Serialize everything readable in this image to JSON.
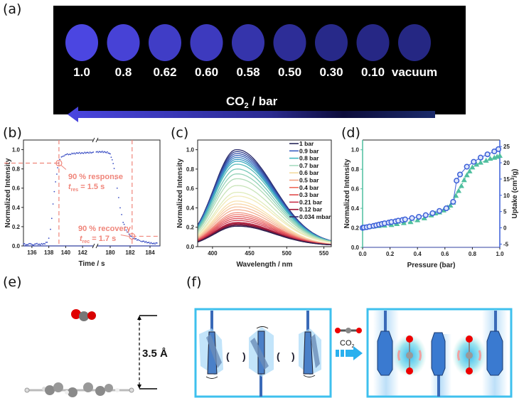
{
  "panel_labels": {
    "a": "(a)",
    "b": "(b)",
    "c": "(c)",
    "d": "(d)",
    "e": "(e)",
    "f": "(f)"
  },
  "panel_a": {
    "samples": [
      {
        "label": "1.0",
        "brightness": 1.0
      },
      {
        "label": "0.8",
        "brightness": 0.92
      },
      {
        "label": "0.62",
        "brightness": 0.8
      },
      {
        "label": "0.60",
        "brightness": 0.74
      },
      {
        "label": "0.58",
        "brightness": 0.6
      },
      {
        "label": "0.50",
        "brightness": 0.45
      },
      {
        "label": "0.30",
        "brightness": 0.35
      },
      {
        "label": "0.10",
        "brightness": 0.32
      },
      {
        "label": "vacuum",
        "brightness": 0.3
      }
    ],
    "arrow_label": "CO",
    "arrow_label_sub": "2",
    "arrow_label_suffix": " / bar",
    "colors": {
      "background": "#000000",
      "glow": "#4a47e0"
    }
  },
  "chart_data": [
    {
      "id": "b",
      "type": "scatter",
      "title": "",
      "xlabel": "Time / s",
      "ylabel": "Normalized Intensity",
      "x_ticks_left": [
        "136",
        "138",
        "140",
        "142"
      ],
      "x_ticks_right": [
        "180",
        "182",
        "184"
      ],
      "x_range_left": [
        135,
        143.5
      ],
      "x_range_right": [
        178.5,
        185
      ],
      "y_ticks": [
        "0.0",
        "0.2",
        "0.4",
        "0.6",
        "0.8",
        "1.0"
      ],
      "ylim": [
        0,
        1.1
      ],
      "series_color": "#3b4fc4",
      "response_segment": [
        [
          135.0,
          0.02
        ],
        [
          135.4,
          0.015
        ],
        [
          135.8,
          0.02
        ],
        [
          136.2,
          0.015
        ],
        [
          136.6,
          0.02
        ],
        [
          137.0,
          0.018
        ],
        [
          137.4,
          0.02
        ],
        [
          137.8,
          0.04
        ],
        [
          138.0,
          0.08
        ],
        [
          138.2,
          0.17
        ],
        [
          138.35,
          0.29
        ],
        [
          138.5,
          0.43
        ],
        [
          138.65,
          0.57
        ],
        [
          138.8,
          0.66
        ],
        [
          138.95,
          0.75
        ],
        [
          139.05,
          0.81
        ],
        [
          139.15,
          0.86
        ],
        [
          139.3,
          0.9
        ],
        [
          139.5,
          0.92
        ],
        [
          139.8,
          0.94
        ],
        [
          140.2,
          0.95
        ],
        [
          140.6,
          0.955
        ],
        [
          141.0,
          0.96
        ],
        [
          141.5,
          0.965
        ],
        [
          142.0,
          0.965
        ],
        [
          142.5,
          0.968
        ],
        [
          143.0,
          0.97
        ],
        [
          143.4,
          0.97
        ]
      ],
      "recovery_segment": [
        [
          178.6,
          0.975
        ],
        [
          179.0,
          0.978
        ],
        [
          179.4,
          0.975
        ],
        [
          179.8,
          0.97
        ],
        [
          180.0,
          0.95
        ],
        [
          180.2,
          0.9
        ],
        [
          180.4,
          0.8
        ],
        [
          180.55,
          0.7
        ],
        [
          180.7,
          0.6
        ],
        [
          180.85,
          0.5
        ],
        [
          181.0,
          0.4
        ],
        [
          181.15,
          0.32
        ],
        [
          181.3,
          0.25
        ],
        [
          181.5,
          0.19
        ],
        [
          181.7,
          0.15
        ],
        [
          181.9,
          0.12
        ],
        [
          182.1,
          0.1
        ],
        [
          182.4,
          0.08
        ],
        [
          182.8,
          0.06
        ],
        [
          183.2,
          0.05
        ],
        [
          183.6,
          0.04
        ],
        [
          184.0,
          0.03
        ],
        [
          184.4,
          0.025
        ],
        [
          184.8,
          0.03
        ]
      ],
      "annotations": [
        {
          "text": "90 % response",
          "sub_var": "t",
          "sub": "res",
          "value": " = 1.5 s",
          "x": 139.2,
          "y": 0.86
        },
        {
          "text": "90 % recovery",
          "sub_var": "t",
          "sub": "rec",
          "value": " = 1.7 s",
          "x": 182.2,
          "y": 0.1
        }
      ],
      "annotation_color": "#f0857a"
    },
    {
      "id": "c",
      "type": "line",
      "xlabel": "Wavelength / nm",
      "ylabel": "Normalized Intensity",
      "x_ticks": [
        "400",
        "450",
        "500",
        "550"
      ],
      "xlim": [
        380,
        560
      ],
      "y_ticks": [
        "0.0",
        "0.2",
        "0.4",
        "0.6",
        "0.8",
        "1.0"
      ],
      "ylim": [
        0,
        1.1
      ],
      "peak_wavelength": 432,
      "legend": [
        {
          "label": "1 bar",
          "color": "#2a2a5a"
        },
        {
          "label": "0.9 bar",
          "color": "#3a5fc0"
        },
        {
          "label": "0.8 bar",
          "color": "#3fb8c0"
        },
        {
          "label": "0.7 bar",
          "color": "#a8dcc0"
        },
        {
          "label": "0.6 bar",
          "color": "#f4dca0"
        },
        {
          "label": "0.5 bar",
          "color": "#f2a080"
        },
        {
          "label": "0.4 bar",
          "color": "#ee6a5a"
        },
        {
          "label": "0.3 bar",
          "color": "#e04a4a"
        },
        {
          "label": "0.21 bar",
          "color": "#c8304a"
        },
        {
          "label": "0.12 bar",
          "color": "#9a1030"
        },
        {
          "label": "0.034 mbar",
          "color": "#3a2a6a"
        }
      ],
      "peak_intensities": [
        1.0,
        0.98,
        0.96,
        0.94,
        0.92,
        0.9,
        0.88,
        0.85,
        0.8,
        0.75,
        0.7,
        0.63,
        0.56,
        0.52,
        0.47,
        0.44,
        0.41,
        0.38,
        0.35,
        0.33,
        0.31,
        0.29,
        0.27,
        0.25,
        0.24,
        0.23,
        0.22,
        0.21
      ],
      "peak_colors": [
        "#2a2a6a",
        "#2e3c8c",
        "#3450a8",
        "#3a66bc",
        "#3c80c4",
        "#3c98c4",
        "#40acc0",
        "#58bcbc",
        "#76c8b8",
        "#94d2b8",
        "#b0dcb8",
        "#c8e4b8",
        "#e0ecbc",
        "#f2eab8",
        "#f8e2b0",
        "#f8d6a8",
        "#f6c4a0",
        "#f4ae92",
        "#f29684",
        "#ee7c72",
        "#e86464",
        "#e0505a",
        "#d03e50",
        "#bc2c48",
        "#a41c3c",
        "#8a1434",
        "#5a1a44",
        "#2a2050"
      ]
    },
    {
      "id": "d",
      "type": "scatter",
      "xlabel": "Pressure (bar)",
      "ylabel_left": "Normalized Intensity",
      "ylabel_right": "Uptake (cm",
      "ylabel_right_sup": "3",
      "ylabel_right_suffix": "/g)",
      "x_ticks": [
        "0.0",
        "0.2",
        "0.4",
        "0.6",
        "0.8",
        "1.0"
      ],
      "xlim": [
        0,
        1
      ],
      "y_left_ticks": [
        "0.0",
        "0.2",
        "0.4",
        "0.6",
        "0.8",
        "1.0"
      ],
      "y_left_lim": [
        0,
        1.1
      ],
      "y_right_ticks": [
        "-5",
        "0",
        "5",
        "10",
        "15",
        "20",
        "25"
      ],
      "y_right_lim": [
        -6,
        27
      ],
      "series": [
        {
          "name": "Normalized Intensity",
          "axis": "left",
          "marker": "triangle",
          "color": "#4fbf9f",
          "x": [
            0.0,
            0.02,
            0.05,
            0.08,
            0.12,
            0.16,
            0.21,
            0.25,
            0.3,
            0.35,
            0.4,
            0.45,
            0.5,
            0.53,
            0.56,
            0.59,
            0.62,
            0.64,
            0.66,
            0.68,
            0.7,
            0.72,
            0.74,
            0.76,
            0.78,
            0.8,
            0.83,
            0.86,
            0.9,
            0.93,
            0.96,
            0.98,
            1.0
          ],
          "y": [
            0.2,
            0.205,
            0.21,
            0.215,
            0.22,
            0.225,
            0.23,
            0.24,
            0.25,
            0.26,
            0.28,
            0.3,
            0.33,
            0.35,
            0.36,
            0.38,
            0.41,
            0.43,
            0.46,
            0.53,
            0.58,
            0.63,
            0.69,
            0.74,
            0.78,
            0.82,
            0.85,
            0.87,
            0.89,
            0.91,
            0.92,
            0.93,
            0.94
          ]
        },
        {
          "name": "Uptake",
          "axis": "right",
          "marker": "circle",
          "color": "#3a5fd8",
          "x": [
            0.0,
            0.01,
            0.03,
            0.05,
            0.08,
            0.1,
            0.12,
            0.14,
            0.16,
            0.19,
            0.21,
            0.24,
            0.26,
            0.29,
            0.31,
            0.36,
            0.41,
            0.46,
            0.51,
            0.56,
            0.61,
            0.66,
            0.685,
            0.71,
            0.76,
            0.81,
            0.86,
            0.91,
            0.96,
            0.99
          ],
          "y": [
            0,
            0.1,
            0.2,
            0.4,
            0.6,
            0.8,
            1.0,
            1.2,
            1.4,
            1.6,
            1.8,
            2.0,
            2.2,
            2.4,
            2.6,
            3.0,
            3.4,
            3.9,
            4.5,
            5.2,
            6.0,
            8.0,
            14.5,
            16.4,
            18.8,
            20.3,
            21.6,
            22.6,
            23.5,
            24.2
          ]
        }
      ]
    }
  ],
  "panel_e": {
    "distance_label": "3.5 Å"
  },
  "panel_f": {
    "gas_label": "CO",
    "gas_sub": "2",
    "frame_color": "#3ec0ee",
    "pillar_color": "#3a78c8"
  }
}
